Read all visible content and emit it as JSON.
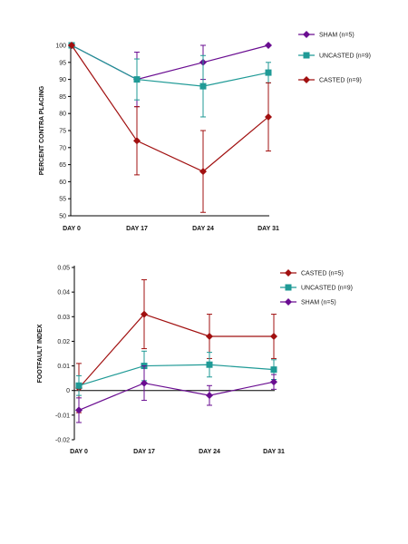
{
  "chart_data": [
    {
      "type": "line",
      "title": "",
      "xlabel": "",
      "ylabel": "PERCENT CONTRA PLACING",
      "categories": [
        "DAY 0",
        "DAY 17",
        "DAY 24",
        "DAY 31"
      ],
      "ylim": [
        50,
        100
      ],
      "yticks": [
        50,
        55,
        60,
        65,
        70,
        75,
        80,
        85,
        90,
        95,
        100
      ],
      "grid": false,
      "legend": "right",
      "series": [
        {
          "name": "SHAM (n=5)",
          "color": "#6a0d91",
          "marker": "diamond",
          "values": [
            100,
            90,
            95,
            100
          ],
          "err": [
            0,
            8,
            5,
            0
          ]
        },
        {
          "name": "UNCASTED (n=9)",
          "color": "#1f9a96",
          "marker": "square",
          "values": [
            100,
            90,
            88,
            92
          ],
          "err": [
            0,
            6,
            9,
            3
          ]
        },
        {
          "name": "CASTED (n=9)",
          "color": "#a11010",
          "marker": "diamond",
          "values": [
            100,
            72,
            63,
            79
          ],
          "err": [
            0,
            10,
            12,
            10
          ]
        }
      ]
    },
    {
      "type": "line",
      "title": "",
      "xlabel": "",
      "ylabel": "FOOTFAULT INDEX",
      "categories": [
        "DAY 0",
        "DAY 17",
        "DAY 24",
        "DAY 31"
      ],
      "ylim": [
        -0.02,
        0.05
      ],
      "yticks": [
        -0.02,
        -0.01,
        0,
        0.01,
        0.02,
        0.03,
        0.04,
        0.05
      ],
      "yticklabels": [
        "-0.02",
        "-0.01",
        "0",
        "0.01",
        "0.02",
        "0.03",
        "0.04",
        "0.05"
      ],
      "grid": false,
      "legend": "right",
      "series": [
        {
          "name": "CASTED (n=5)",
          "color": "#a11010",
          "marker": "diamond",
          "values": [
            0.001,
            0.031,
            0.022,
            0.022
          ],
          "err": [
            0.01,
            0.014,
            0.009,
            0.009
          ]
        },
        {
          "name": "UNCASTED (n=9)",
          "color": "#1f9a96",
          "marker": "square",
          "values": [
            0.002,
            0.01,
            0.0105,
            0.0085
          ],
          "err": [
            0.004,
            0.006,
            0.005,
            0.004
          ]
        },
        {
          "name": "SHAM (n=5)",
          "color": "#6a0d91",
          "marker": "diamond",
          "values": [
            -0.008,
            0.003,
            -0.002,
            0.0035
          ],
          "err": [
            0.005,
            0.007,
            0.004,
            0.003
          ]
        }
      ]
    }
  ]
}
